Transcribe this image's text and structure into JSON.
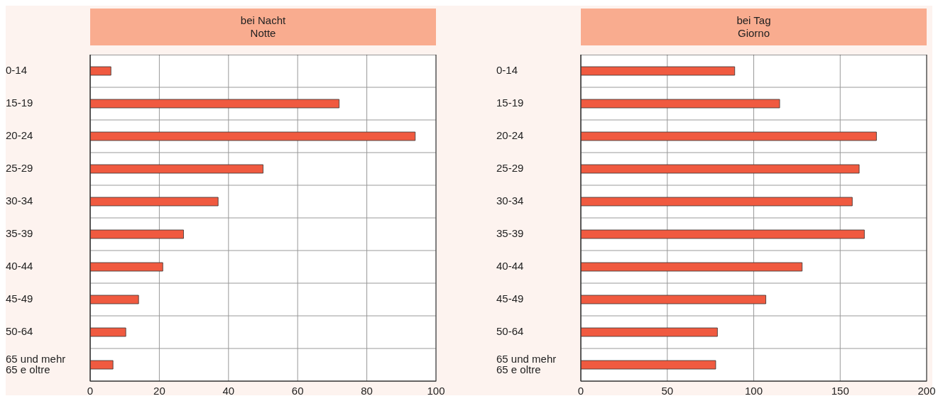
{
  "chart_data": [
    {
      "type": "bar",
      "orientation": "horizontal",
      "title": "bei Nacht\nNotte",
      "categories": [
        "0-14",
        "15-19",
        "20-24",
        "25-29",
        "30-34",
        "35-39",
        "40-44",
        "45-49",
        "50-64",
        "65 und mehr\n65 e oltre"
      ],
      "values": [
        6,
        72,
        94,
        50,
        37,
        27,
        21,
        14,
        10.3,
        6.6
      ],
      "color": "#f05a40",
      "xlim": [
        0,
        100
      ],
      "xticks": [
        0,
        20,
        40,
        60,
        80,
        100
      ],
      "grid": true
    },
    {
      "type": "bar",
      "orientation": "horizontal",
      "title": "bei Tag\nGiorno",
      "categories": [
        "0-14",
        "15-19",
        "20-24",
        "25-29",
        "30-34",
        "35-39",
        "40-44",
        "45-49",
        "50-64",
        "65 und mehr\n65 e oltre"
      ],
      "values": [
        89,
        115,
        171,
        161,
        157,
        164,
        128,
        107,
        79,
        78
      ],
      "color": "#f05a40",
      "xlim": [
        0,
        200
      ],
      "xticks": [
        0,
        50,
        100,
        150,
        200
      ],
      "grid": true
    }
  ]
}
